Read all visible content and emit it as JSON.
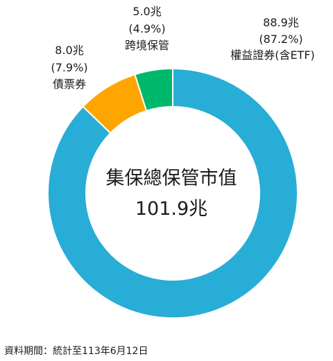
{
  "chart_data": {
    "type": "pie",
    "style": "donut",
    "center_title": "集保總保管市值",
    "center_value": "101.9兆",
    "slices": [
      {
        "name": "權益證券(含ETF)",
        "value": 88.9,
        "value_label": "88.9兆",
        "percent": 87.2,
        "percent_label": "(87.2%)",
        "color": "#27ADD6"
      },
      {
        "name": "債票券",
        "value": 8.0,
        "value_label": "8.0兆",
        "percent": 7.9,
        "percent_label": "(7.9%)",
        "color": "#FFA500"
      },
      {
        "name": "跨境保管",
        "value": 5.0,
        "value_label": "5.0兆",
        "percent": 4.9,
        "percent_label": "(4.9%)",
        "color": "#00B86B"
      }
    ]
  },
  "footnote": "資料期間：統計至113年6月12日"
}
